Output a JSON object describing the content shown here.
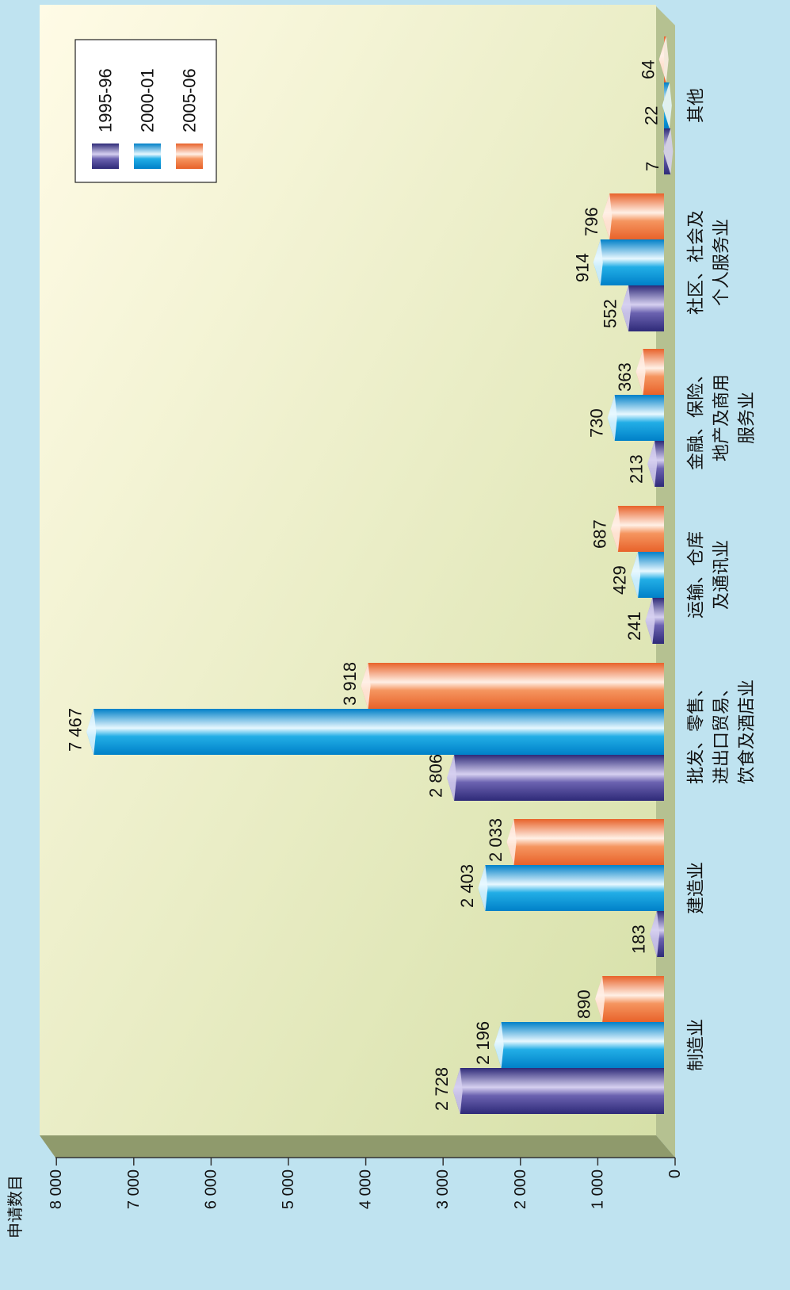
{
  "chart_data": {
    "type": "bar",
    "orientation": "horizontal (rotated 90° on page)",
    "title": "",
    "ylabel": "申请数目",
    "categories": [
      [
        "制造业"
      ],
      [
        "建造业"
      ],
      [
        "批发、零售、",
        "进出口贸易、",
        "饮食及酒店业"
      ],
      [
        "运输、仓库",
        "及通讯业"
      ],
      [
        "金融、保险、",
        "地产及商用",
        "服务业"
      ],
      [
        "社区、社会及",
        "个人服务业"
      ],
      [
        "其他"
      ]
    ],
    "series": [
      {
        "name": "1995-96",
        "values": [
          2728,
          183,
          2806,
          241,
          213,
          552,
          7
        ],
        "labels": [
          "2 728",
          "183",
          "2 806",
          "241",
          "213",
          "552",
          "7"
        ],
        "color": "#6b62b0",
        "color_dark": "#2e2a78",
        "color_light": "#d6d0f0"
      },
      {
        "name": "2000-01",
        "values": [
          2196,
          2403,
          7467,
          429,
          730,
          914,
          22
        ],
        "labels": [
          "2 196",
          "2 403",
          "7 467",
          "429",
          "730",
          "914",
          "22"
        ],
        "color": "#22aee6",
        "color_dark": "#0080c8",
        "color_light": "#e8f8ff"
      },
      {
        "name": "2005-06",
        "values": [
          890,
          2033,
          3918,
          687,
          363,
          796,
          64
        ],
        "labels": [
          "890",
          "2 033",
          "3 918",
          "687",
          "363",
          "796",
          "64"
        ],
        "color": "#f5955f",
        "color_dark": "#e8622a",
        "color_light": "#fff0e6"
      }
    ],
    "ticks": [
      {
        "value": 0,
        "label": "0"
      },
      {
        "value": 1000,
        "label": "1 000"
      },
      {
        "value": 2000,
        "label": "2 000"
      },
      {
        "value": 3000,
        "label": "3 000"
      },
      {
        "value": 4000,
        "label": "4 000"
      },
      {
        "value": 5000,
        "label": "5 000"
      },
      {
        "value": 6000,
        "label": "6 000"
      },
      {
        "value": 7000,
        "label": "7 000"
      },
      {
        "value": 8000,
        "label": "8 000"
      }
    ],
    "ylim": [
      0,
      8000
    ],
    "grid": false,
    "legend_position": "top-right",
    "colors": {
      "background": "#bfe3f0",
      "plot_light": "#fffbe6",
      "plot_dark": "#d6e0a8",
      "floor": "#b5c191",
      "floor_edge": "#8f9a6c"
    }
  }
}
